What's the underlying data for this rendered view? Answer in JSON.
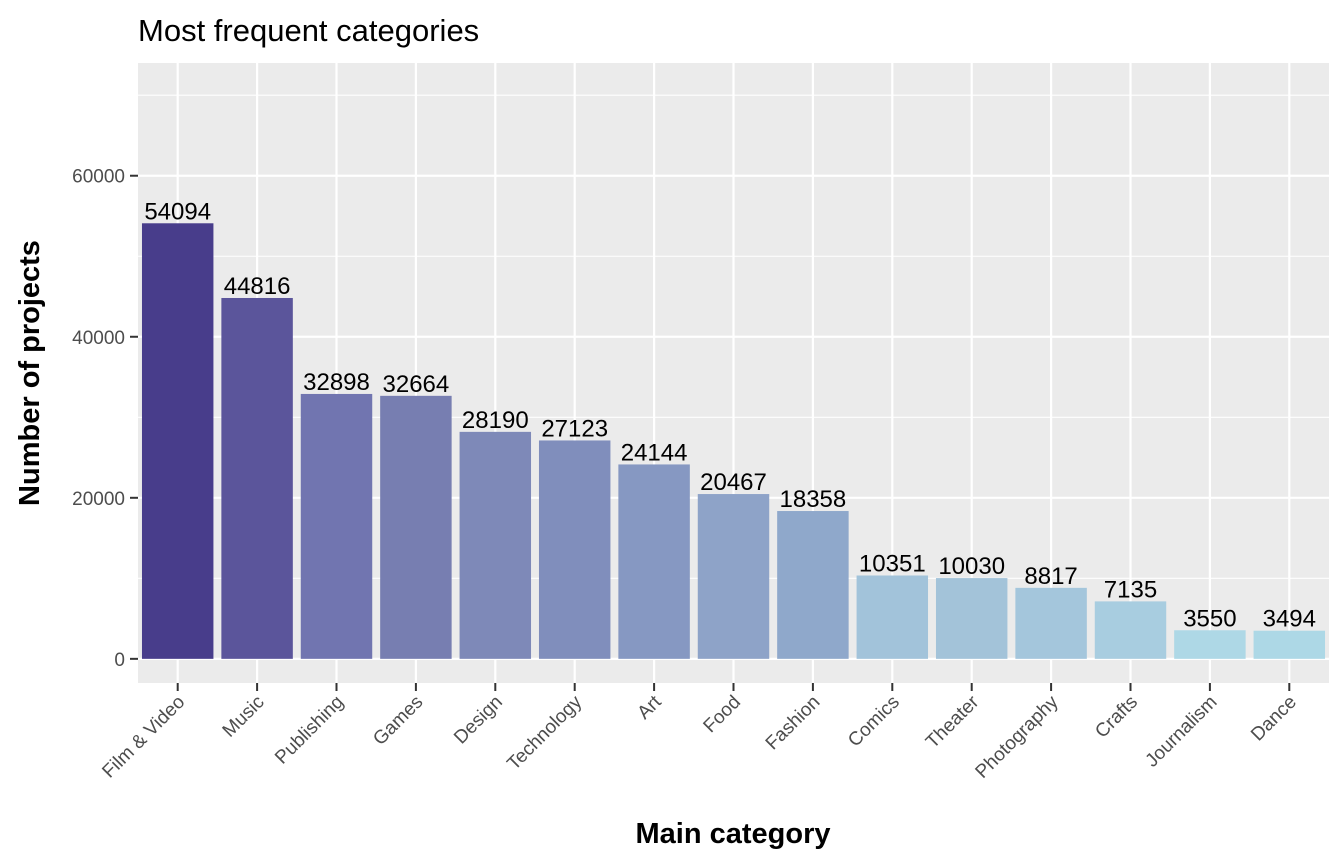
{
  "chart_data": {
    "type": "bar",
    "title": "Most frequent categories",
    "xlabel": "Main category",
    "ylabel": "Number of projects",
    "categories": [
      "Film & Video",
      "Music",
      "Publishing",
      "Games",
      "Design",
      "Technology",
      "Art",
      "Food",
      "Fashion",
      "Comics",
      "Theater",
      "Photography",
      "Crafts",
      "Journalism",
      "Dance"
    ],
    "values": [
      54094,
      44816,
      32898,
      32664,
      28190,
      27123,
      24144,
      20467,
      18358,
      10351,
      10030,
      8817,
      7135,
      3550,
      3494
    ],
    "value_labels": [
      "54094",
      "44816",
      "32898",
      "32664",
      "28190",
      "27123",
      "24144",
      "20467",
      "18358",
      "10351",
      "10030",
      "8817",
      "7135",
      "3550",
      "3494"
    ],
    "colors": [
      "#483D8B",
      "#5B559B",
      "#7175B0",
      "#777EB1",
      "#7E89B8",
      "#808EBC",
      "#8698C2",
      "#8EA3C8",
      "#8FA8CB",
      "#A2C3DA",
      "#A3C3D9",
      "#A4C6DC",
      "#A8CDE0",
      "#AED8E6",
      "#ADD8E6"
    ],
    "ylim": [
      -3000,
      74000
    ],
    "yticks": [
      0,
      20000,
      40000,
      60000
    ],
    "ytick_labels": [
      "0",
      "20000",
      "40000",
      "60000"
    ],
    "grid": true,
    "legend": "none",
    "panel_background": "#EBEBEB",
    "grid_color": "#FFFFFF"
  }
}
